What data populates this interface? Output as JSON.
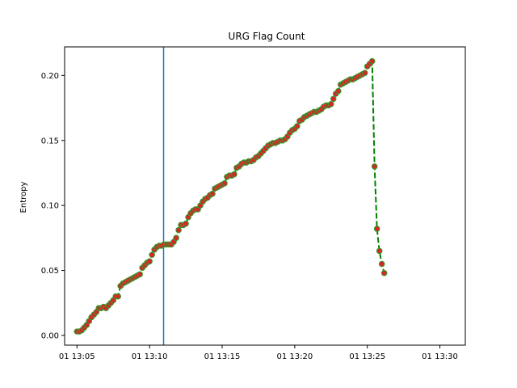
{
  "chart_data": {
    "type": "line",
    "title": "URG Flag Count",
    "xlabel": "",
    "ylabel": "Entropy",
    "x_is_time": true,
    "x_tick_labels": [
      "01 13:05",
      "01 13:10",
      "01 13:15",
      "01 13:20",
      "01 13:25",
      "01 13:30"
    ],
    "x_ticks": [
      "13:05",
      "13:10",
      "13:15",
      "13:20",
      "13:25",
      "13:30"
    ],
    "xlim": [
      "13:04:09",
      "13:31:45"
    ],
    "ylim": [
      -0.0075,
      0.222
    ],
    "y_ticks": [
      0.0,
      0.05,
      0.1,
      0.15,
      0.2
    ],
    "y_tick_labels": [
      "0.00",
      "0.05",
      "0.10",
      "0.15",
      "0.20"
    ],
    "grid": false,
    "vertical_line": {
      "x": "13:10:58",
      "color": "#1f77b4"
    },
    "series": [
      {
        "line_color": "#008000",
        "line_style": "dashed",
        "marker_color": "#d62728",
        "marker_edge": "#2ca02c",
        "points": [
          [
            "13:05:00",
            0.003
          ],
          [
            "13:05:10",
            0.003
          ],
          [
            "13:05:20",
            0.004
          ],
          [
            "13:05:30",
            0.006
          ],
          [
            "13:05:40",
            0.008
          ],
          [
            "13:05:50",
            0.011
          ],
          [
            "13:06:00",
            0.014
          ],
          [
            "13:06:10",
            0.016
          ],
          [
            "13:06:20",
            0.018
          ],
          [
            "13:06:30",
            0.021
          ],
          [
            "13:06:40",
            0.021
          ],
          [
            "13:06:50",
            0.022
          ],
          [
            "13:07:00",
            0.021
          ],
          [
            "13:07:10",
            0.023
          ],
          [
            "13:07:20",
            0.025
          ],
          [
            "13:07:30",
            0.027
          ],
          [
            "13:07:40",
            0.03
          ],
          [
            "13:07:50",
            0.03
          ],
          [
            "13:08:00",
            0.038
          ],
          [
            "13:08:10",
            0.04
          ],
          [
            "13:08:20",
            0.041
          ],
          [
            "13:08:30",
            0.042
          ],
          [
            "13:08:40",
            0.043
          ],
          [
            "13:08:50",
            0.044
          ],
          [
            "13:09:00",
            0.045
          ],
          [
            "13:09:10",
            0.046
          ],
          [
            "13:09:20",
            0.047
          ],
          [
            "13:09:30",
            0.052
          ],
          [
            "13:09:40",
            0.054
          ],
          [
            "13:09:50",
            0.056
          ],
          [
            "13:10:00",
            0.057
          ],
          [
            "13:10:10",
            0.062
          ],
          [
            "13:10:20",
            0.066
          ],
          [
            "13:10:30",
            0.068
          ],
          [
            "13:10:40",
            0.069
          ],
          [
            "13:10:50",
            0.069
          ],
          [
            "13:11:00",
            0.07
          ],
          [
            "13:11:10",
            0.07
          ],
          [
            "13:11:20",
            0.07
          ],
          [
            "13:11:30",
            0.07
          ],
          [
            "13:11:40",
            0.072
          ],
          [
            "13:11:50",
            0.075
          ],
          [
            "13:12:00",
            0.081
          ],
          [
            "13:12:10",
            0.085
          ],
          [
            "13:12:20",
            0.085
          ],
          [
            "13:12:30",
            0.086
          ],
          [
            "13:12:40",
            0.091
          ],
          [
            "13:12:50",
            0.094
          ],
          [
            "13:13:00",
            0.096
          ],
          [
            "13:13:10",
            0.097
          ],
          [
            "13:13:20",
            0.097
          ],
          [
            "13:13:30",
            0.1
          ],
          [
            "13:13:40",
            0.103
          ],
          [
            "13:13:50",
            0.105
          ],
          [
            "13:14:00",
            0.106
          ],
          [
            "13:14:10",
            0.108
          ],
          [
            "13:14:20",
            0.109
          ],
          [
            "13:14:30",
            0.113
          ],
          [
            "13:14:40",
            0.114
          ],
          [
            "13:14:50",
            0.115
          ],
          [
            "13:15:00",
            0.116
          ],
          [
            "13:15:10",
            0.117
          ],
          [
            "13:15:20",
            0.122
          ],
          [
            "13:15:30",
            0.123
          ],
          [
            "13:15:40",
            0.123
          ],
          [
            "13:15:50",
            0.124
          ],
          [
            "13:16:00",
            0.129
          ],
          [
            "13:16:10",
            0.13
          ],
          [
            "13:16:20",
            0.132
          ],
          [
            "13:16:30",
            0.133
          ],
          [
            "13:16:40",
            0.133
          ],
          [
            "13:16:50",
            0.134
          ],
          [
            "13:17:00",
            0.134
          ],
          [
            "13:17:10",
            0.135
          ],
          [
            "13:17:20",
            0.137
          ],
          [
            "13:17:30",
            0.138
          ],
          [
            "13:17:40",
            0.14
          ],
          [
            "13:17:50",
            0.142
          ],
          [
            "13:18:00",
            0.144
          ],
          [
            "13:18:10",
            0.146
          ],
          [
            "13:18:20",
            0.147
          ],
          [
            "13:18:30",
            0.148
          ],
          [
            "13:18:40",
            0.148
          ],
          [
            "13:18:50",
            0.149
          ],
          [
            "13:19:00",
            0.15
          ],
          [
            "13:19:10",
            0.15
          ],
          [
            "13:19:20",
            0.151
          ],
          [
            "13:19:30",
            0.153
          ],
          [
            "13:19:40",
            0.156
          ],
          [
            "13:19:50",
            0.158
          ],
          [
            "13:20:00",
            0.159
          ],
          [
            "13:20:10",
            0.161
          ],
          [
            "13:20:20",
            0.165
          ],
          [
            "13:20:30",
            0.166
          ],
          [
            "13:20:40",
            0.168
          ],
          [
            "13:20:50",
            0.169
          ],
          [
            "13:21:00",
            0.17
          ],
          [
            "13:21:10",
            0.171
          ],
          [
            "13:21:20",
            0.172
          ],
          [
            "13:21:30",
            0.172
          ],
          [
            "13:21:40",
            0.173
          ],
          [
            "13:21:50",
            0.174
          ],
          [
            "13:22:00",
            0.176
          ],
          [
            "13:22:10",
            0.177
          ],
          [
            "13:22:20",
            0.177
          ],
          [
            "13:22:30",
            0.178
          ],
          [
            "13:22:40",
            0.182
          ],
          [
            "13:22:50",
            0.186
          ],
          [
            "13:23:00",
            0.188
          ],
          [
            "13:23:10",
            0.193
          ],
          [
            "13:23:20",
            0.194
          ],
          [
            "13:23:30",
            0.195
          ],
          [
            "13:23:40",
            0.196
          ],
          [
            "13:23:50",
            0.197
          ],
          [
            "13:24:00",
            0.197
          ],
          [
            "13:24:10",
            0.198
          ],
          [
            "13:24:20",
            0.199
          ],
          [
            "13:24:30",
            0.2
          ],
          [
            "13:24:40",
            0.201
          ],
          [
            "13:24:50",
            0.202
          ],
          [
            "13:25:00",
            0.207
          ],
          [
            "13:25:10",
            0.209
          ],
          [
            "13:25:20",
            0.211
          ],
          [
            "13:25:30",
            0.13
          ],
          [
            "13:25:40",
            0.082
          ],
          [
            "13:25:50",
            0.065
          ],
          [
            "13:26:00",
            0.055
          ],
          [
            "13:26:10",
            0.048
          ]
        ]
      }
    ]
  }
}
